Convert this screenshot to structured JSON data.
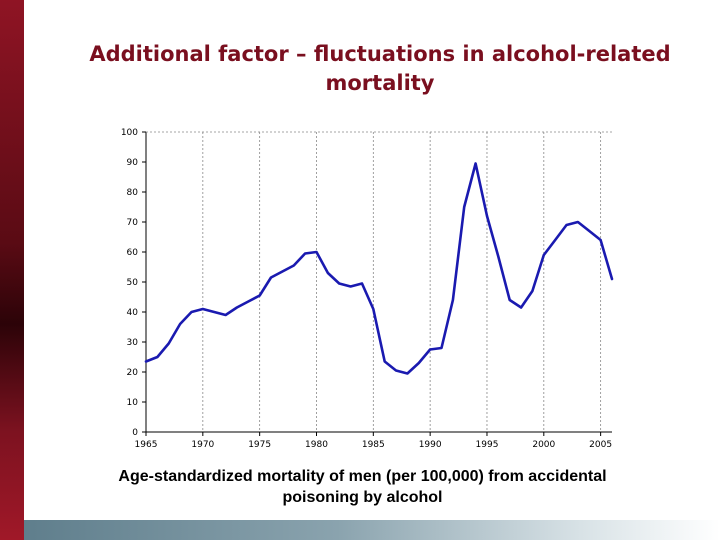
{
  "slide": {
    "title_line1": "Additional factor – fluctuations in alcohol-related",
    "title_line2": "mortality",
    "caption_line1": "Age-standardized mortality of men (per 100,000) from accidental",
    "caption_line2": "poisoning by alcohol"
  },
  "colors": {
    "line": "#1a1ab0",
    "accent_bar": "#8f1424",
    "title": "#7a0f1f"
  },
  "chart_data": {
    "type": "line",
    "title": "",
    "xlabel": "",
    "ylabel": "",
    "xlim": [
      1965,
      2006
    ],
    "ylim": [
      0,
      100
    ],
    "x_ticks": [
      1965,
      1970,
      1975,
      1980,
      1985,
      1990,
      1995,
      2000,
      2005
    ],
    "y_ticks": [
      0,
      10,
      20,
      30,
      40,
      50,
      60,
      70,
      80,
      90,
      100
    ],
    "grid": "vertical dashed",
    "series": [
      {
        "x": [
          1965,
          1966,
          1967,
          1968,
          1969,
          1970,
          1971,
          1972,
          1973,
          1974,
          1975,
          1976,
          1977,
          1978,
          1979,
          1980,
          1981,
          1982,
          1983,
          1984,
          1985,
          1986,
          1987,
          1988,
          1989,
          1990,
          1991,
          1992,
          1993,
          1994,
          1995,
          1996,
          1997,
          1998,
          1999,
          2000,
          2001,
          2002,
          2003,
          2004,
          2005,
          2006
        ],
        "values": [
          23.5,
          25,
          29.5,
          36,
          40,
          41,
          40,
          39,
          41.5,
          43.5,
          45.5,
          51.5,
          53.5,
          55.5,
          59.5,
          60,
          53,
          49.5,
          48.5,
          49.5,
          41,
          23.5,
          20.5,
          19.5,
          23,
          27.5,
          28,
          44,
          75,
          89.5,
          72,
          58.5,
          44,
          41.5,
          47,
          59,
          64,
          69,
          70,
          67,
          64,
          51
        ]
      }
    ]
  }
}
